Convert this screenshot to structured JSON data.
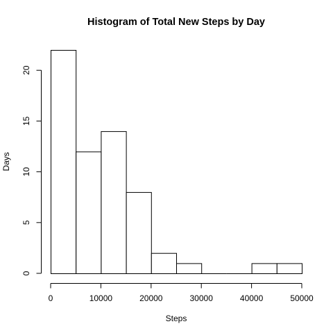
{
  "chart_data": {
    "type": "bar",
    "title": "Histogram of Total New Steps by Day",
    "xlabel": "Steps",
    "ylabel": "Days",
    "bins": [
      {
        "from": 0,
        "to": 5000,
        "count": 22
      },
      {
        "from": 5000,
        "to": 10000,
        "count": 12
      },
      {
        "from": 10000,
        "to": 15000,
        "count": 14
      },
      {
        "from": 15000,
        "to": 20000,
        "count": 8
      },
      {
        "from": 20000,
        "to": 25000,
        "count": 2
      },
      {
        "from": 25000,
        "to": 30000,
        "count": 1
      },
      {
        "from": 30000,
        "to": 35000,
        "count": 0
      },
      {
        "from": 35000,
        "to": 40000,
        "count": 0
      },
      {
        "from": 40000,
        "to": 45000,
        "count": 1
      },
      {
        "from": 45000,
        "to": 50000,
        "count": 1
      }
    ],
    "xlim": [
      0,
      50000
    ],
    "ylim": [
      0,
      22
    ],
    "x_ticks": [
      0,
      10000,
      20000,
      30000,
      40000,
      50000
    ],
    "y_ticks": [
      0,
      5,
      10,
      15,
      20
    ],
    "grid": false
  }
}
